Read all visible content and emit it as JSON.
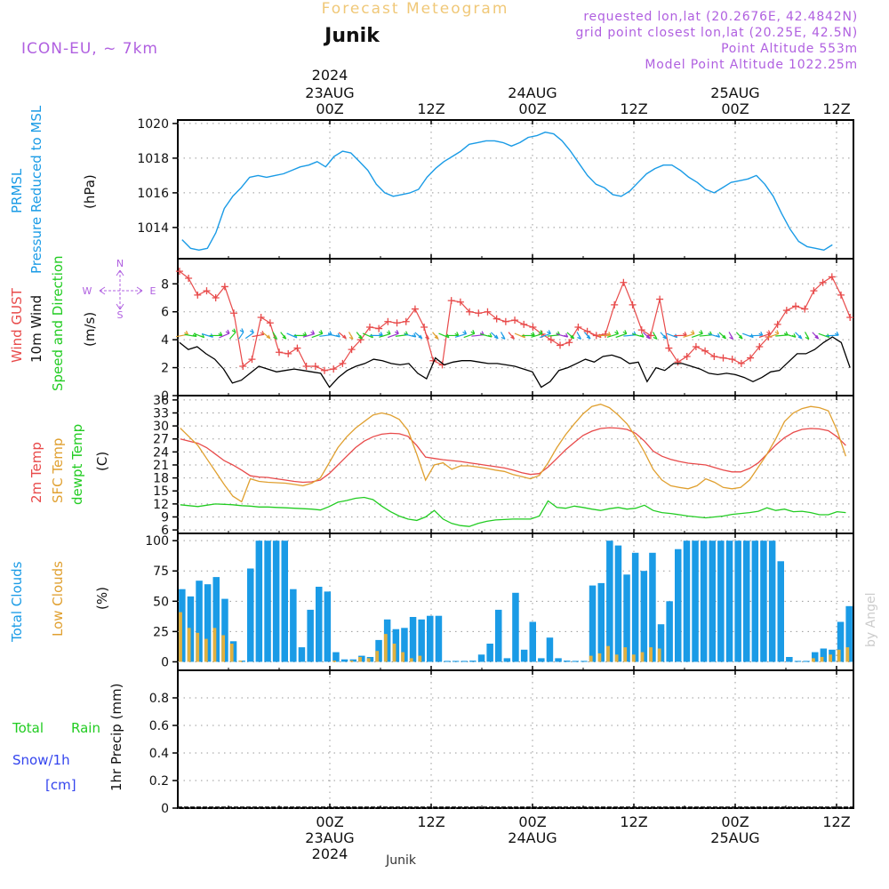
{
  "header": {
    "product": "Forecast Meteogram",
    "location": "Junik",
    "model": "ICON-EU, ~ 7km",
    "requested": "requested lon,lat (20.2676E, 42.4842N)",
    "gridpoint": "grid point closest lon,lat (20.25E, 42.5N)",
    "point_alt": "Point Altitude 553m",
    "model_alt": "Model Point Altitude 1022.25m",
    "footer_location": "Junik",
    "credit": "by Angel"
  },
  "time_axis": {
    "start": "2024-08-22T06:00Z",
    "end": "2024-08-25T18:00Z",
    "step_hours": 1,
    "top_labels": [
      {
        "line1": "2024",
        "line2": "23AUG",
        "line3": "00Z",
        "hour": 18
      },
      {
        "line1": "",
        "line2": "",
        "line3": "12Z",
        "hour": 30
      },
      {
        "line1": "",
        "line2": "24AUG",
        "line3": "00Z",
        "hour": 42
      },
      {
        "line1": "",
        "line2": "",
        "line3": "12Z",
        "hour": 54
      },
      {
        "line1": "",
        "line2": "25AUG",
        "line3": "00Z",
        "hour": 66
      },
      {
        "line1": "",
        "line2": "",
        "line3": "12Z",
        "hour": 78
      }
    ],
    "bottom_labels": [
      {
        "line1": "00Z",
        "line2": "23AUG",
        "line3": "2024",
        "hour": 18
      },
      {
        "line1": "12Z",
        "line2": "",
        "line3": "",
        "hour": 30
      },
      {
        "line1": "00Z",
        "line2": "24AUG",
        "line3": "",
        "hour": 42
      },
      {
        "line1": "12Z",
        "line2": "",
        "line3": "",
        "hour": 54
      },
      {
        "line1": "00Z",
        "line2": "25AUG",
        "line3": "",
        "hour": 66
      },
      {
        "line1": "12Z",
        "line2": "",
        "line3": "",
        "hour": 78
      }
    ]
  },
  "panels": {
    "pressure": {
      "label1": "PRMSL",
      "label2": "Pressure Reduced to MSL",
      "unit": "(hPa)"
    },
    "wind": {
      "label_gust": "Wind GUST",
      "label_wind": "10m Wind",
      "label_dir": "Speed and Direction",
      "unit": "(m/s)",
      "compass_n": "N",
      "compass_s": "S",
      "compass_w": "W",
      "compass_e": "E"
    },
    "temp": {
      "label1": "2m Temp",
      "label2": "SFC Temp",
      "label3": "dewpt Temp",
      "unit": "(C)"
    },
    "cloud": {
      "label1": "Total Clouds",
      "label2": "Low Clouds",
      "unit": "(%)"
    },
    "precip": {
      "label_total": "Total",
      "label_rain": "Rain",
      "label_snow": "Snow/1h",
      "label_cm": "[cm]",
      "label_axis": "1hr Precip (mm)"
    }
  },
  "colors": {
    "pressure": "#1a9be6",
    "gust": "#e84a4a",
    "wind": "#000000",
    "temp2m": "#e84a4a",
    "sfc": "#e0a030",
    "dew": "#22cc22",
    "total_cloud": "#1a9be6",
    "low_cloud": "#e0b040",
    "purple": "#b060e0",
    "blue_label": "#3344ee",
    "green_label": "#22cc22"
  },
  "chart_data": [
    {
      "type": "line",
      "title": "PRMSL Pressure Reduced to MSL",
      "ylabel": "hPa",
      "ylim": [
        1012.2,
        1020.2
      ],
      "yticks": [
        1014,
        1016,
        1018,
        1020
      ],
      "x_start_hour": 0,
      "series": [
        {
          "name": "PRMSL",
          "values": [
            1013.3,
            1012.8,
            1012.7,
            1012.8,
            1013.7,
            1015.1,
            1015.8,
            1016.3,
            1016.9,
            1017.0,
            1016.9,
            1017.0,
            1017.1,
            1017.3,
            1017.5,
            1017.6,
            1017.8,
            1017.5,
            1018.1,
            1018.4,
            1018.3,
            1017.8,
            1017.3,
            1016.5,
            1016.0,
            1015.8,
            1015.9,
            1016.0,
            1016.2,
            1016.9,
            1017.4,
            1017.8,
            1018.1,
            1018.4,
            1018.8,
            1018.9,
            1019.0,
            1019.0,
            1018.9,
            1018.7,
            1018.9,
            1019.2,
            1019.3,
            1019.5,
            1019.4,
            1019.0,
            1018.4,
            1017.7,
            1017.0,
            1016.5,
            1016.3,
            1015.9,
            1015.8,
            1016.1,
            1016.6,
            1017.1,
            1017.4,
            1017.6,
            1017.6,
            1017.3,
            1016.9,
            1016.6,
            1016.2,
            1016.0,
            1016.3,
            1016.6,
            1016.7,
            1016.8,
            1017.0,
            1016.5,
            1015.8,
            1014.8,
            1013.9,
            1013.2,
            1012.9,
            1012.8,
            1012.7,
            1013.0
          ]
        }
      ]
    },
    {
      "type": "line",
      "title": "Wind GUST / 10m Wind Speed and Direction",
      "ylabel": "m/s",
      "ylim": [
        0,
        9.8
      ],
      "yticks": [
        0,
        2,
        4,
        6,
        8
      ],
      "x_start_hour": 0,
      "series": [
        {
          "name": "Wind GUST",
          "values": [
            8.9,
            8.4,
            7.2,
            7.5,
            7.0,
            7.8,
            5.9,
            2.1,
            2.6,
            5.6,
            5.2,
            3.1,
            3.0,
            3.4,
            2.1,
            2.1,
            1.8,
            1.9,
            2.3,
            3.3,
            4.0,
            4.9,
            4.8,
            5.3,
            5.2,
            5.3,
            6.2,
            4.9,
            2.5,
            2.2,
            6.8,
            6.7,
            6.0,
            5.9,
            6.0,
            5.5,
            5.3,
            5.4,
            5.1,
            4.9,
            4.4,
            4.0,
            3.6,
            3.8,
            4.9,
            4.6,
            4.3,
            4.4,
            6.5,
            8.1,
            6.5,
            4.7,
            4.3,
            6.9,
            3.4,
            2.4,
            2.8,
            3.5,
            3.2,
            2.8,
            2.7,
            2.6,
            2.3,
            2.7,
            3.5,
            4.2,
            5.1,
            6.1,
            6.4,
            6.2,
            7.5,
            8.1,
            8.5,
            7.2,
            5.6
          ]
        },
        {
          "name": "10m Wind",
          "values": [
            3.8,
            3.3,
            3.5,
            3.0,
            2.6,
            1.9,
            0.9,
            1.1,
            1.6,
            2.1,
            1.9,
            1.7,
            1.8,
            1.9,
            1.8,
            1.7,
            1.6,
            0.6,
            1.3,
            1.8,
            2.1,
            2.3,
            2.6,
            2.5,
            2.3,
            2.2,
            2.3,
            1.6,
            1.2,
            2.7,
            2.2,
            2.4,
            2.5,
            2.5,
            2.4,
            2.3,
            2.3,
            2.2,
            2.1,
            1.9,
            1.7,
            0.6,
            1.0,
            1.8,
            2.0,
            2.3,
            2.6,
            2.4,
            2.8,
            2.9,
            2.7,
            2.3,
            2.4,
            1.0,
            2.0,
            1.8,
            2.3,
            2.3,
            2.1,
            1.9,
            1.6,
            1.5,
            1.6,
            1.5,
            1.3,
            1.0,
            1.3,
            1.7,
            1.8,
            2.4,
            3.0,
            3.0,
            3.3,
            3.8,
            4.2,
            3.8,
            2.0
          ]
        }
      ]
    },
    {
      "type": "line",
      "title": "2m Temp / SFC Temp / dewpt Temp",
      "ylabel": "C",
      "ylim": [
        5.2,
        37
      ],
      "yticks": [
        6,
        9,
        12,
        15,
        18,
        21,
        24,
        27,
        30,
        33,
        36
      ],
      "x_start_hour": 0,
      "series": [
        {
          "name": "2m Temp",
          "values": [
            27.0,
            26.5,
            26.0,
            25.0,
            23.5,
            22.0,
            21.0,
            19.8,
            18.5,
            18.2,
            18.1,
            17.8,
            17.5,
            17.2,
            17.0,
            17.1,
            17.5,
            19.0,
            21.0,
            23.0,
            25.0,
            26.5,
            27.5,
            28.1,
            28.3,
            28.2,
            27.6,
            25.5,
            22.8,
            22.5,
            22.2,
            22.0,
            21.8,
            21.5,
            21.2,
            20.9,
            20.6,
            20.3,
            19.8,
            19.2,
            18.8,
            19.0,
            20.5,
            22.5,
            24.5,
            26.2,
            27.8,
            28.8,
            29.4,
            29.6,
            29.5,
            29.2,
            28.3,
            26.5,
            24.2,
            23.0,
            22.3,
            21.8,
            21.4,
            21.2,
            21.0,
            20.4,
            19.8,
            19.4,
            19.4,
            20.2,
            21.5,
            23.5,
            25.6,
            27.3,
            28.5,
            29.2,
            29.4,
            29.3,
            28.9,
            27.5,
            25.5
          ]
        },
        {
          "name": "SFC Temp",
          "values": [
            29.5,
            27.5,
            25.5,
            22.5,
            19.5,
            16.5,
            13.8,
            12.5,
            17.8,
            17.2,
            17.0,
            16.9,
            16.8,
            16.5,
            16.2,
            16.8,
            18.0,
            21.5,
            25.0,
            27.5,
            29.5,
            31.0,
            32.5,
            33.0,
            32.5,
            31.5,
            29.0,
            23.5,
            17.5,
            21.0,
            21.5,
            20.0,
            20.8,
            20.8,
            20.5,
            20.2,
            19.8,
            19.5,
            18.8,
            18.3,
            17.8,
            18.6,
            21.5,
            25.0,
            28.0,
            30.5,
            32.8,
            34.5,
            35.0,
            34.2,
            32.5,
            30.5,
            27.5,
            24.0,
            20.0,
            17.5,
            16.2,
            15.8,
            15.5,
            16.2,
            17.8,
            17.0,
            15.8,
            15.5,
            15.8,
            17.5,
            20.5,
            23.5,
            27.0,
            31.0,
            33.0,
            34.0,
            34.5,
            34.2,
            33.5,
            29.0,
            23.0
          ]
        },
        {
          "name": "dewpt Temp",
          "values": [
            11.8,
            11.6,
            11.4,
            11.7,
            12.0,
            11.9,
            11.8,
            11.6,
            11.5,
            11.3,
            11.3,
            11.2,
            11.1,
            11.0,
            10.9,
            10.8,
            10.6,
            11.4,
            12.4,
            12.8,
            13.3,
            13.5,
            13.0,
            11.5,
            10.2,
            9.2,
            8.5,
            8.2,
            9.0,
            10.5,
            8.5,
            7.5,
            7.0,
            6.8,
            7.5,
            8.0,
            8.3,
            8.4,
            8.5,
            8.5,
            8.5,
            9.2,
            12.7,
            11.2,
            11.0,
            11.5,
            11.2,
            10.8,
            10.5,
            10.9,
            11.2,
            10.8,
            11.0,
            11.7,
            10.5,
            10.0,
            9.8,
            9.5,
            9.2,
            9.0,
            8.8,
            9.0,
            9.2,
            9.6,
            9.8,
            10.0,
            10.3,
            11.1,
            10.5,
            10.8,
            10.2,
            10.3,
            10.0,
            9.5,
            9.5,
            10.2,
            10.0
          ]
        }
      ]
    },
    {
      "type": "bar",
      "title": "Total Clouds / Low Clouds",
      "ylabel": "%",
      "ylim": [
        -7,
        106
      ],
      "yticks": [
        0,
        25,
        50,
        75,
        100
      ],
      "x_start_hour": 0,
      "series": [
        {
          "name": "Total Clouds",
          "values": [
            60,
            54,
            67,
            64,
            70,
            52,
            17,
            1,
            77,
            100,
            100,
            100,
            100,
            60,
            12,
            43,
            62,
            58,
            8,
            2,
            2,
            5,
            4,
            18,
            35,
            27,
            28,
            37,
            35,
            38,
            38,
            0,
            0,
            0,
            1,
            6,
            15,
            43,
            3,
            57,
            10,
            33,
            3,
            20,
            3,
            1,
            0,
            0,
            63,
            65,
            100,
            96,
            72,
            90,
            75,
            90,
            31,
            50,
            93,
            100,
            100,
            100,
            100,
            100,
            100,
            100,
            100,
            100,
            100,
            100,
            83,
            4,
            0,
            0,
            8,
            11,
            10,
            33,
            46
          ]
        },
        {
          "name": "Low Clouds",
          "values": [
            41,
            28,
            24,
            19,
            28,
            22,
            15,
            1,
            0,
            0,
            0,
            0,
            0,
            0,
            0,
            0,
            0,
            0,
            1,
            0,
            1,
            4,
            3,
            9,
            23,
            15,
            8,
            3,
            5,
            0,
            0,
            0,
            0,
            0,
            0,
            0,
            0,
            0,
            0,
            0,
            0,
            0,
            0,
            0,
            0,
            0,
            0,
            0,
            5,
            7,
            13,
            6,
            12,
            6,
            8,
            12,
            11,
            0,
            0,
            0,
            0,
            0,
            0,
            0,
            0,
            0,
            0,
            0,
            0,
            0,
            0,
            0,
            0,
            0,
            3,
            4,
            6,
            10,
            12
          ]
        }
      ]
    },
    {
      "type": "line",
      "title": "1hr Precip",
      "ylabel": "1hr Precip (mm)",
      "ylim": [
        0,
        1.0
      ],
      "yticks": [
        0,
        0.2,
        0.4,
        0.6,
        0.8
      ],
      "series": [
        {
          "name": "Total",
          "values": []
        },
        {
          "name": "Rain",
          "values": []
        },
        {
          "name": "Snow/1h",
          "values": []
        }
      ]
    }
  ]
}
